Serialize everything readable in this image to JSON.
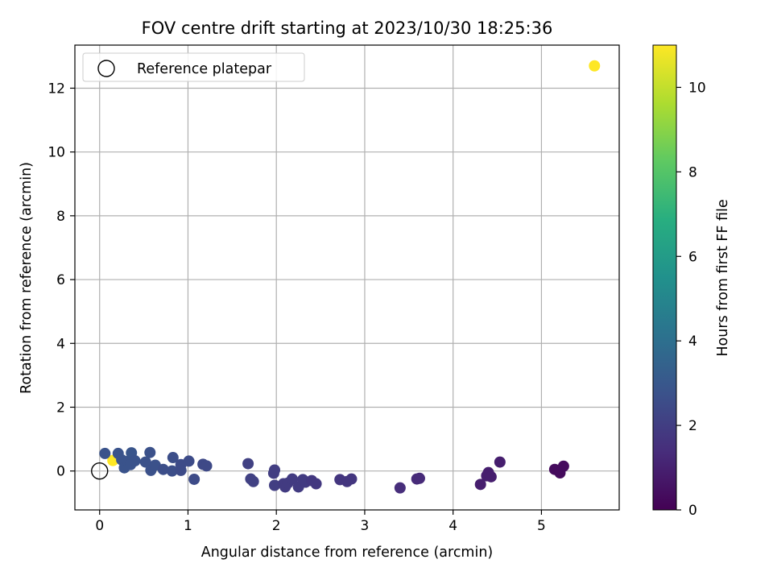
{
  "chart_data": {
    "type": "scatter",
    "title": "FOV centre drift starting at 2023/10/30 18:25:36",
    "xlabel": "Angular distance from reference (arcmin)",
    "ylabel": "Rotation from reference (arcmin)",
    "xlim": [
      -0.28,
      5.88
    ],
    "ylim": [
      -1.22,
      13.35
    ],
    "xticks": [
      0,
      1,
      2,
      3,
      4,
      5
    ],
    "yticks": [
      0,
      2,
      4,
      6,
      8,
      10,
      12
    ],
    "grid": true,
    "legend": {
      "placement": "upper-left",
      "entries": [
        "Reference platepar"
      ]
    },
    "colorbar": {
      "label": "Hours from first FF file",
      "range": [
        0,
        11
      ],
      "ticks": [
        0,
        2,
        4,
        6,
        8,
        10
      ],
      "colormap": "viridis"
    },
    "reference_point": {
      "x": 0,
      "y": 0
    },
    "points": [
      {
        "x": 5.6,
        "y": 12.7,
        "c": 11.0
      },
      {
        "x": 0.15,
        "y": 0.33,
        "c": 11.0
      },
      {
        "x": 0.06,
        "y": 0.55,
        "c": 2.8
      },
      {
        "x": 0.21,
        "y": 0.55,
        "c": 2.8
      },
      {
        "x": 0.25,
        "y": 0.35,
        "c": 2.8
      },
      {
        "x": 0.28,
        "y": 0.1,
        "c": 2.8
      },
      {
        "x": 0.32,
        "y": 0.3,
        "c": 2.8
      },
      {
        "x": 0.36,
        "y": 0.57,
        "c": 2.9
      },
      {
        "x": 0.35,
        "y": 0.2,
        "c": 2.8
      },
      {
        "x": 0.4,
        "y": 0.32,
        "c": 2.8
      },
      {
        "x": 0.52,
        "y": 0.28,
        "c": 2.7
      },
      {
        "x": 0.57,
        "y": 0.58,
        "c": 2.7
      },
      {
        "x": 0.58,
        "y": 0.02,
        "c": 2.7
      },
      {
        "x": 0.63,
        "y": 0.18,
        "c": 2.7
      },
      {
        "x": 0.72,
        "y": 0.05,
        "c": 2.6
      },
      {
        "x": 0.83,
        "y": 0.42,
        "c": 2.6
      },
      {
        "x": 0.82,
        "y": 0.0,
        "c": 2.6
      },
      {
        "x": 0.92,
        "y": 0.2,
        "c": 2.5
      },
      {
        "x": 0.92,
        "y": 0.02,
        "c": 2.5
      },
      {
        "x": 1.01,
        "y": 0.31,
        "c": 2.5
      },
      {
        "x": 1.07,
        "y": -0.26,
        "c": 2.5
      },
      {
        "x": 1.17,
        "y": 0.21,
        "c": 2.4
      },
      {
        "x": 1.21,
        "y": 0.16,
        "c": 2.4
      },
      {
        "x": 1.68,
        "y": 0.23,
        "c": 2.1
      },
      {
        "x": 1.71,
        "y": -0.25,
        "c": 2.1
      },
      {
        "x": 1.74,
        "y": -0.33,
        "c": 2.1
      },
      {
        "x": 1.97,
        "y": -0.07,
        "c": 2.0
      },
      {
        "x": 1.98,
        "y": 0.03,
        "c": 2.0
      },
      {
        "x": 1.98,
        "y": -0.45,
        "c": 2.0
      },
      {
        "x": 2.08,
        "y": -0.4,
        "c": 1.9
      },
      {
        "x": 2.1,
        "y": -0.5,
        "c": 1.9
      },
      {
        "x": 2.13,
        "y": -0.38,
        "c": 1.9
      },
      {
        "x": 2.18,
        "y": -0.25,
        "c": 1.9
      },
      {
        "x": 2.25,
        "y": -0.5,
        "c": 1.9
      },
      {
        "x": 2.3,
        "y": -0.27,
        "c": 1.9
      },
      {
        "x": 2.33,
        "y": -0.35,
        "c": 1.9
      },
      {
        "x": 2.4,
        "y": -0.3,
        "c": 1.8
      },
      {
        "x": 2.45,
        "y": -0.4,
        "c": 1.8
      },
      {
        "x": 2.72,
        "y": -0.27,
        "c": 1.7
      },
      {
        "x": 2.8,
        "y": -0.33,
        "c": 1.7
      },
      {
        "x": 2.85,
        "y": -0.25,
        "c": 1.7
      },
      {
        "x": 3.4,
        "y": -0.53,
        "c": 1.4
      },
      {
        "x": 3.59,
        "y": -0.25,
        "c": 1.3
      },
      {
        "x": 3.62,
        "y": -0.23,
        "c": 1.3
      },
      {
        "x": 4.31,
        "y": -0.42,
        "c": 0.9
      },
      {
        "x": 4.38,
        "y": -0.15,
        "c": 0.9
      },
      {
        "x": 4.4,
        "y": -0.05,
        "c": 0.9
      },
      {
        "x": 4.43,
        "y": -0.18,
        "c": 0.9
      },
      {
        "x": 4.53,
        "y": 0.28,
        "c": 0.9
      },
      {
        "x": 5.15,
        "y": 0.05,
        "c": 0.3
      },
      {
        "x": 5.2,
        "y": 0.02,
        "c": 0.3
      },
      {
        "x": 5.21,
        "y": -0.06,
        "c": 0.3
      },
      {
        "x": 5.25,
        "y": 0.15,
        "c": 0.3
      }
    ]
  }
}
